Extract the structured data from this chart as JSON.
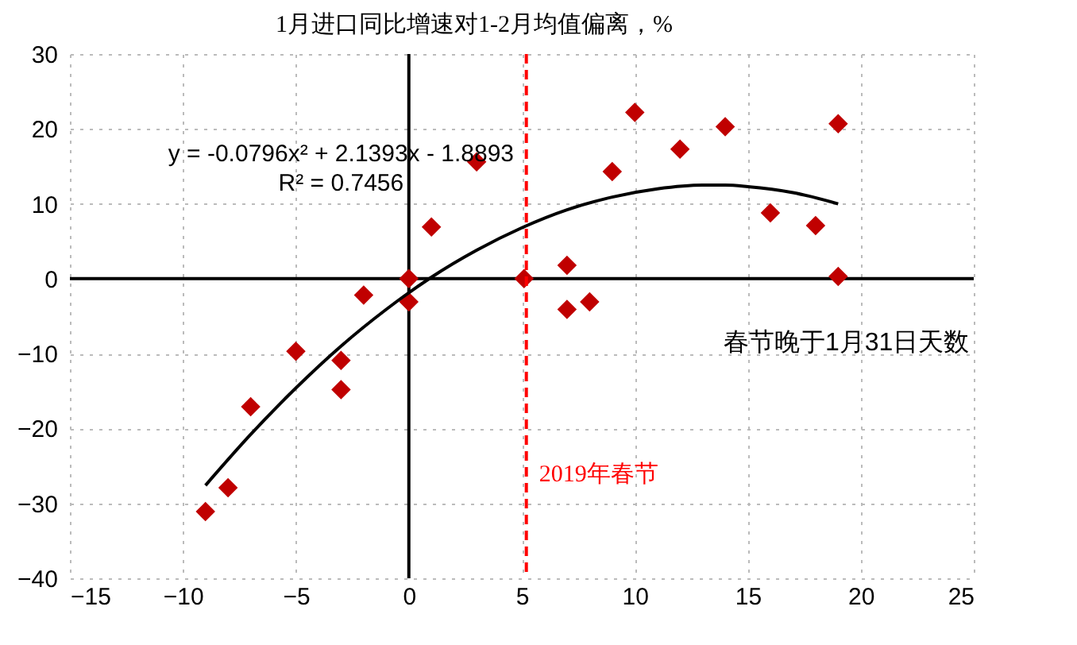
{
  "chart_data": {
    "type": "scatter",
    "title": "1月进口同比增速对1-2月均值偏离，%",
    "xlabel": "春节晚于1月31日天数",
    "xlim": [
      -15,
      25
    ],
    "xticks": [
      -15,
      -10,
      -5,
      0,
      5,
      10,
      15,
      20,
      25
    ],
    "ylim": [
      -40,
      30
    ],
    "yticks": [
      -40,
      -30,
      -20,
      -10,
      0,
      10,
      20,
      30
    ],
    "grid": true,
    "series": [
      {
        "type": "scatter",
        "color": "#c00000",
        "marker": "diamond",
        "x": [
          -9,
          -8,
          -7,
          -5,
          -3,
          -3,
          -2,
          0,
          0,
          1,
          3,
          5.1,
          7,
          7,
          8,
          9,
          10,
          12,
          14,
          16,
          18,
          19,
          19
        ],
        "values": [
          -31.1,
          -27.9,
          -17.1,
          -9.7,
          -10.9,
          -14.8,
          -2.2,
          0,
          -3.1,
          6.9,
          15.6,
          0,
          1.8,
          -4.1,
          -3.1,
          14.3,
          22.2,
          17.3,
          20.3,
          8.8,
          7.1,
          20.7,
          0.3
        ]
      },
      {
        "type": "line",
        "color": "#000000",
        "line_style": "solid",
        "x": [
          -9,
          -7,
          -5,
          -3,
          -1,
          1,
          3,
          5,
          7,
          9,
          11,
          13,
          14,
          15,
          17,
          19
        ],
        "values": [
          -27.6,
          -20.8,
          -14.6,
          -9.0,
          -4.1,
          0.2,
          3.8,
          6.8,
          9.2,
          10.9,
          12.0,
          12.5,
          12.5,
          12.3,
          11.5,
          10.0
        ]
      }
    ],
    "ref_lines": [
      {
        "axis": "x",
        "value": 5.2,
        "label": "2019年春节",
        "color": "#ff0000",
        "line_style": "dashed"
      }
    ],
    "annotations": [
      "y = -0.0796x² + 2.1393x - 1.8893",
      "R² = 0.7456"
    ]
  }
}
